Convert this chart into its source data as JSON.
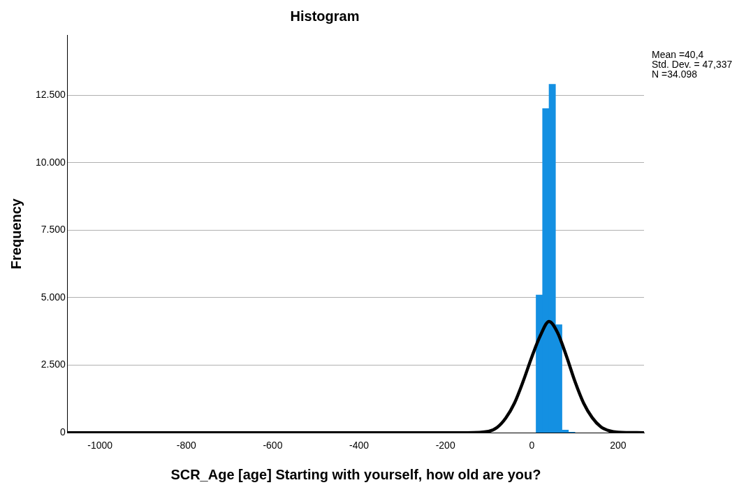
{
  "chart_data": {
    "type": "histogram",
    "title": "Histogram",
    "xlabel": "SCR_Age [age] Starting with yourself, how old are you?",
    "ylabel": "Frequency",
    "bins": [
      10,
      25,
      40,
      55,
      70,
      85,
      100
    ],
    "values": [
      5100,
      12000,
      12900,
      4000,
      100,
      20
    ],
    "color": "#1490e2",
    "series": [
      {
        "type": "line",
        "color": "#000000",
        "x": [
          -1075,
          -150,
          -100,
          -80,
          -60,
          -40,
          -20,
          0,
          20,
          40,
          60,
          80,
          100,
          120,
          140,
          160,
          180,
          200,
          260
        ],
        "values": [
          0,
          0,
          50,
          200,
          550,
          1100,
          1900,
          2800,
          3600,
          4120,
          3700,
          2850,
          1900,
          1100,
          560,
          220,
          70,
          20,
          0
        ]
      }
    ],
    "xlim": [
      -1075,
      260
    ],
    "xticks": [
      -1000,
      -800,
      -600,
      -400,
      -200,
      0,
      200
    ],
    "ylim": [
      0,
      14725
    ],
    "yticks": [
      {
        "value": 0,
        "label": "0"
      },
      {
        "value": 2500,
        "label": "2.500"
      },
      {
        "value": 5000,
        "label": "5.000"
      },
      {
        "value": 7500,
        "label": "7.500"
      },
      {
        "value": 10000,
        "label": "10.000"
      },
      {
        "value": 12500,
        "label": "12.500"
      }
    ],
    "grid": "y",
    "legend": false,
    "marker": "none",
    "annotations": [
      "Mean =40,4",
      "Std. Dev. = 47,337",
      "N =34.098"
    ]
  }
}
